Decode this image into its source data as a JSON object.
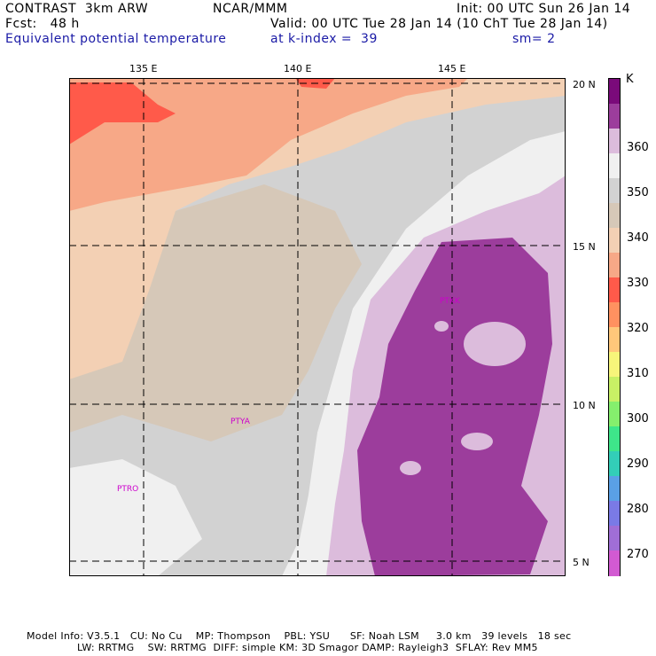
{
  "header": {
    "model": "CONTRAST  3km ARW",
    "forecast": "Fcst:   48 h",
    "org": "NCAR/MMM",
    "init": "Init: 00 UTC Sun 26 Jan 14",
    "valid": "Valid: 00 UTC Tue 28 Jan 14 (10 ChT Tue 28 Jan 14)",
    "field": "Equivalent potential temperature",
    "level": "at k-index =  39",
    "smooth": "sm= 2"
  },
  "map": {
    "lon_labels": [
      "135 E",
      "140 E",
      "145 E"
    ],
    "lat_labels": [
      "20 N",
      "15 N",
      "10 N",
      "5 N"
    ],
    "stations": [
      "PTYA",
      "PTRO",
      "PTKK"
    ]
  },
  "colorbar": {
    "unit": "K",
    "labels": [
      "360",
      "350",
      "340",
      "330",
      "320",
      "310",
      "300",
      "290",
      "280",
      "270"
    ],
    "colors": [
      "#7a0a7a",
      "#9c3d9c",
      "#dcbcdc",
      "#f0f0f0",
      "#d2d2d2",
      "#d6c8b8",
      "#f3d0b4",
      "#f7a887",
      "#ff5a4a",
      "#ff9160",
      "#ffc77a",
      "#f7f57a",
      "#c8f065",
      "#85ef6d",
      "#3ee68a",
      "#33ceb8",
      "#5aa0e6",
      "#7a7ae6",
      "#a06ed6",
      "#d25ad2"
    ]
  },
  "footer": {
    "line1": "Model Info: V3.5.1   CU: No Cu    MP: Thompson    PBL: YSU      SF: Noah LSM     3.0 km   39 levels   18 sec",
    "line2": "               LW: RRTMG    SW: RRTMG  DIFF: simple KM: 3D Smagor DAMP: Rayleigh3  SFLAY: Rev MM5"
  }
}
